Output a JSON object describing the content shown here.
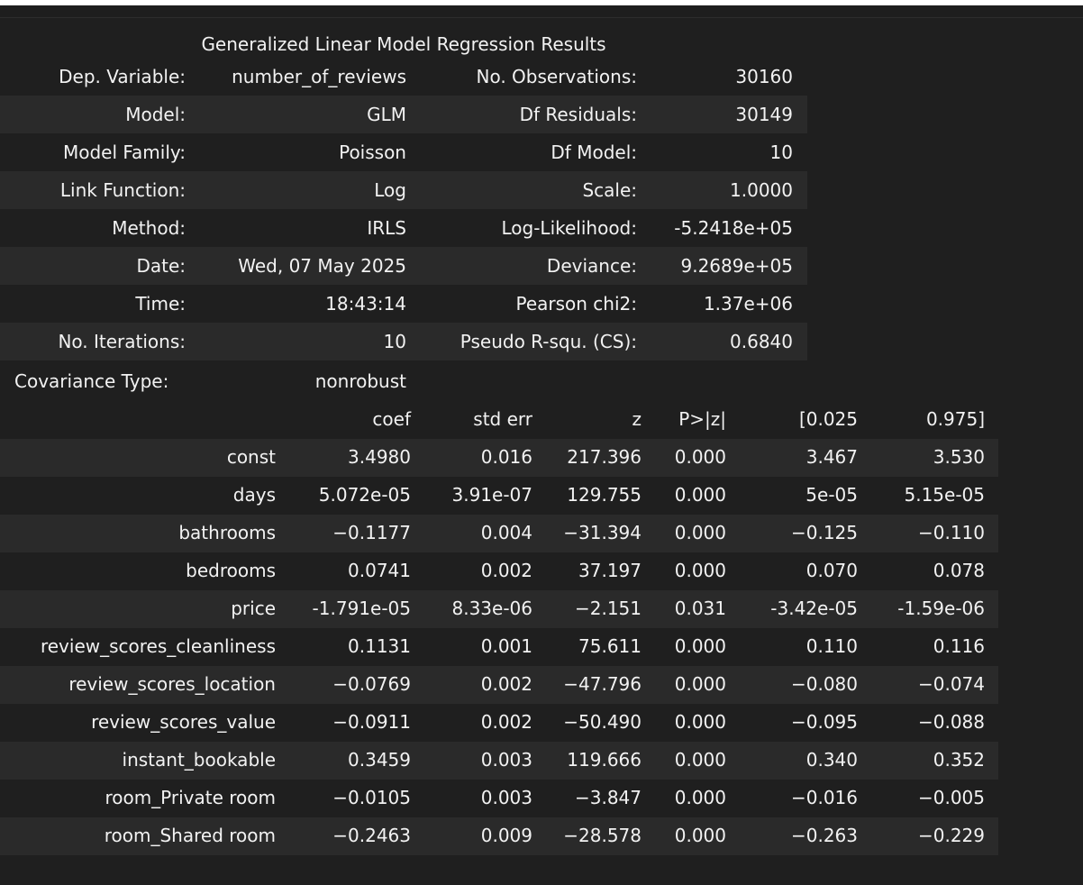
{
  "caption": "Generalized Linear Model Regression Results",
  "summary_rows": [
    {
      "label1": "Dep. Variable:",
      "value1": "number_of_reviews",
      "label2": "No. Observations:",
      "value2": "30160"
    },
    {
      "label1": "Model:",
      "value1": "GLM",
      "label2": "Df Residuals:",
      "value2": "30149"
    },
    {
      "label1": "Model Family:",
      "value1": "Poisson",
      "label2": "Df Model:",
      "value2": "10"
    },
    {
      "label1": "Link Function:",
      "value1": "Log",
      "label2": "Scale:",
      "value2": "1.0000"
    },
    {
      "label1": "Method:",
      "value1": "IRLS",
      "label2": "Log-Likelihood:",
      "value2": "-5.2418e+05"
    },
    {
      "label1": "Date:",
      "value1": "Wed, 07 May 2025",
      "label2": "Deviance:",
      "value2": "9.2689e+05"
    },
    {
      "label1": "Time:",
      "value1": "18:43:14",
      "label2": "Pearson chi2:",
      "value2": "1.37e+06"
    },
    {
      "label1": "No. Iterations:",
      "value1": "10",
      "label2": "Pseudo R-squ. (CS):",
      "value2": "0.6840"
    }
  ],
  "covariance": {
    "label": "Covariance Type:",
    "value": "nonrobust"
  },
  "coef_headers": [
    "coef",
    "std err",
    "z",
    "P>|z|",
    "[0.025",
    "0.975]"
  ],
  "coef_rows": [
    {
      "name": "const",
      "coef": "3.4980",
      "std_err": "0.016",
      "z": "217.396",
      "p": "0.000",
      "lo": "3.467",
      "hi": "3.530"
    },
    {
      "name": "days",
      "coef": "5.072e-05",
      "std_err": "3.91e-07",
      "z": "129.755",
      "p": "0.000",
      "lo": "5e-05",
      "hi": "5.15e-05"
    },
    {
      "name": "bathrooms",
      "coef": "−0.1177",
      "std_err": "0.004",
      "z": "−31.394",
      "p": "0.000",
      "lo": "−0.125",
      "hi": "−0.110"
    },
    {
      "name": "bedrooms",
      "coef": "0.0741",
      "std_err": "0.002",
      "z": "37.197",
      "p": "0.000",
      "lo": "0.070",
      "hi": "0.078"
    },
    {
      "name": "price",
      "coef": "-1.791e-05",
      "std_err": "8.33e-06",
      "z": "−2.151",
      "p": "0.031",
      "lo": "-3.42e-05",
      "hi": "-1.59e-06"
    },
    {
      "name": "review_scores_cleanliness",
      "coef": "0.1131",
      "std_err": "0.001",
      "z": "75.611",
      "p": "0.000",
      "lo": "0.110",
      "hi": "0.116"
    },
    {
      "name": "review_scores_location",
      "coef": "−0.0769",
      "std_err": "0.002",
      "z": "−47.796",
      "p": "0.000",
      "lo": "−0.080",
      "hi": "−0.074"
    },
    {
      "name": "review_scores_value",
      "coef": "−0.0911",
      "std_err": "0.002",
      "z": "−50.490",
      "p": "0.000",
      "lo": "−0.095",
      "hi": "−0.088"
    },
    {
      "name": "instant_bookable",
      "coef": "0.3459",
      "std_err": "0.003",
      "z": "119.666",
      "p": "0.000",
      "lo": "0.340",
      "hi": "0.352"
    },
    {
      "name": "room_Private room",
      "coef": "−0.0105",
      "std_err": "0.003",
      "z": "−3.847",
      "p": "0.000",
      "lo": "−0.016",
      "hi": "−0.005"
    },
    {
      "name": "room_Shared room",
      "coef": "−0.2463",
      "std_err": "0.009",
      "z": "−28.578",
      "p": "0.000",
      "lo": "−0.263",
      "hi": "−0.229"
    }
  ],
  "colors": {
    "background": "#1f1f1f",
    "stripe": "#2a2a2a",
    "text": "#f2f2f2"
  }
}
